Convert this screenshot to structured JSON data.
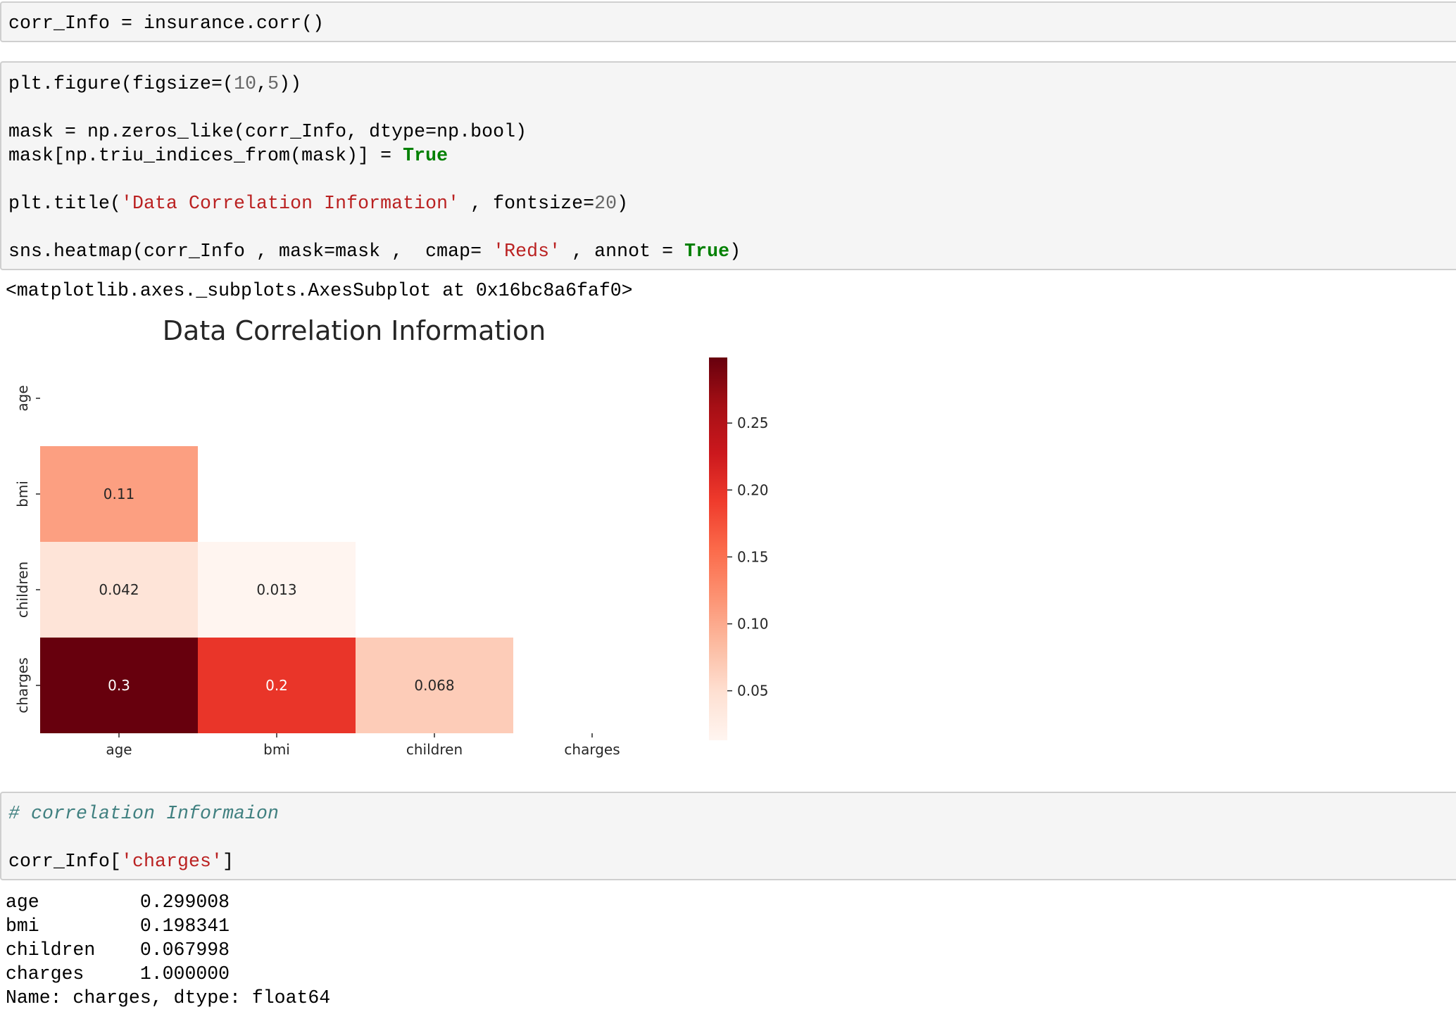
{
  "cell1": {
    "line1": {
      "p1": "corr_Info = insurance.corr()"
    }
  },
  "cell2": {
    "line1": {
      "p1": "plt.figure(figsize=(",
      "n1": "10",
      "p2": ",",
      "n2": "5",
      "p3": "))"
    },
    "line2": {
      "p1": "mask = np.zeros_like(corr_Info, dtype=np.bool)"
    },
    "line3": {
      "p1": "mask[np.triu_indices_from(mask)] = ",
      "kw": "True"
    },
    "line4": {
      "p1": "plt.title(",
      "s1": "'Data Correlation Information'",
      "p2": " , fontsize=",
      "n1": "20",
      "p3": ")"
    },
    "line5": {
      "p1": "sns.heatmap(corr_Info , mask=mask ,  cmap= ",
      "s1": "'Reds'",
      "p2": " , annot = ",
      "kw": "True",
      "p3": ")"
    }
  },
  "cell2_output": {
    "repr": "<matplotlib.axes._subplots.AxesSubplot at 0x16bc8a6faf0>"
  },
  "chart_data": {
    "type": "heatmap",
    "title": "Data Correlation Information",
    "rows": [
      "age",
      "bmi",
      "children",
      "charges"
    ],
    "columns": [
      "age",
      "bmi",
      "children",
      "charges"
    ],
    "cells": [
      {
        "row": "bmi",
        "col": "age",
        "value": 0.109,
        "label": "0.11"
      },
      {
        "row": "children",
        "col": "age",
        "value": 0.042,
        "label": "0.042"
      },
      {
        "row": "children",
        "col": "bmi",
        "value": 0.013,
        "label": "0.013"
      },
      {
        "row": "charges",
        "col": "age",
        "value": 0.299,
        "label": "0.3"
      },
      {
        "row": "charges",
        "col": "bmi",
        "value": 0.198,
        "label": "0.2"
      },
      {
        "row": "charges",
        "col": "children",
        "value": 0.068,
        "label": "0.068"
      }
    ],
    "mask": "upper triangle including diagonal",
    "colormap": "Reds",
    "colorbar_range": [
      0.013,
      0.299
    ],
    "colorbar_ticks": [
      "0.25",
      "0.20",
      "0.15",
      "0.10",
      "0.05"
    ],
    "colorbar_tick_values": [
      0.25,
      0.2,
      0.15,
      0.1,
      0.05
    ],
    "colors": {
      "min": "#fff5f0",
      "max": "#67000d"
    }
  },
  "cell3": {
    "line1": {
      "comment": "# correlation Informaion"
    },
    "line2": {
      "p1": "corr_Info[",
      "s1": "'charges'",
      "p2": "]"
    }
  },
  "cell3_output": {
    "lines": [
      "age         0.299008",
      "bmi         0.198341",
      "children    0.067998",
      "charges     1.000000",
      "Name: charges, dtype: float64"
    ]
  }
}
